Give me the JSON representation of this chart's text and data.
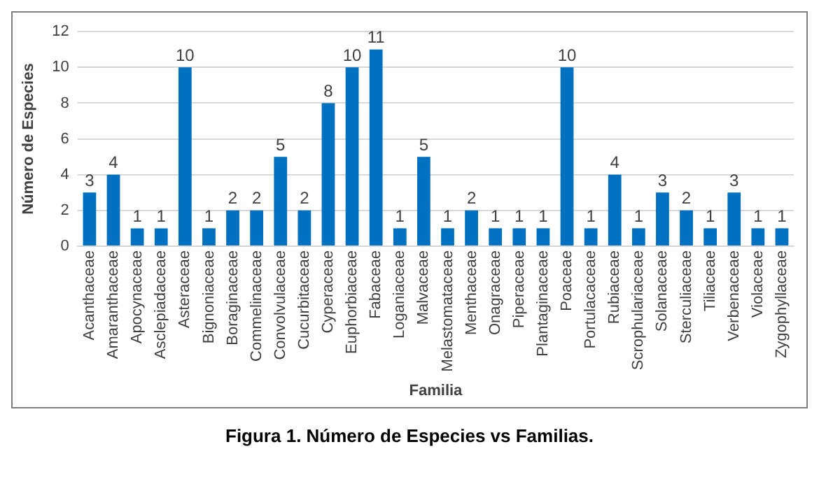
{
  "chart_data": {
    "type": "bar",
    "categories": [
      "Acanthaceae",
      "Amaranthaceae",
      "Apocynaceae",
      "Asclepiadaceae",
      "Asteraceae",
      "Bignoniaceae",
      "Boraginaceae",
      "Commelinaceae",
      "Convolvulaceae",
      "Cucurbitaceae",
      "Cyperaceae",
      "Euphorbiaceae",
      "Fabaceae",
      "Loganiaceae",
      "Malvaceae",
      "Melastomataceae",
      "Menthaceae",
      "Onagraceae",
      "Piperaceae",
      "Plantaginaceae",
      "Poaceae",
      "Portulacaceae",
      "Rubiaceae",
      "Scrophulariaceae",
      "Solanaceae",
      "Sterculiaceae",
      "Tiliaceae",
      "Verbenaceae",
      "Violaceae",
      "Zygophyllaceae"
    ],
    "values": [
      3,
      4,
      1,
      1,
      10,
      1,
      2,
      2,
      5,
      2,
      8,
      10,
      11,
      1,
      5,
      1,
      2,
      1,
      1,
      1,
      10,
      1,
      4,
      1,
      3,
      2,
      1,
      3,
      1,
      1
    ],
    "color": "#0070c0",
    "xlabel": "Familia",
    "ylabel": "Número de Especies",
    "ylim": [
      0,
      12
    ],
    "yticks": [
      0,
      2,
      4,
      6,
      8,
      10,
      12
    ],
    "grid": "y",
    "data_labels": true,
    "annotations": [
      "Figura 1. Número de Especies vs Familias."
    ]
  }
}
